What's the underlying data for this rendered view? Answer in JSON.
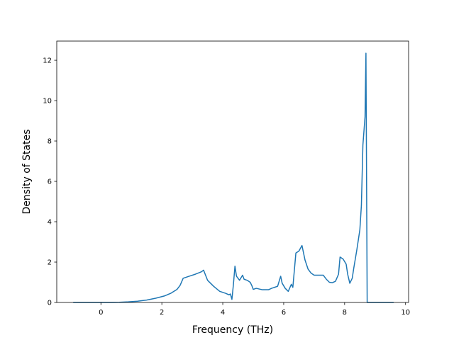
{
  "chart_data": {
    "type": "line",
    "title": "",
    "xlabel": "Frequency (THz)",
    "ylabel": "Density of States",
    "xlim": [
      -1.45,
      10.1
    ],
    "ylim": [
      0,
      12.95
    ],
    "xticks": [
      0,
      2,
      4,
      6,
      8,
      10
    ],
    "yticks": [
      0,
      2,
      4,
      6,
      8,
      10,
      12
    ],
    "grid": false,
    "legend": "none",
    "series": [
      {
        "color": "#1f77b4",
        "points": [
          [
            -0.9,
            0.0
          ],
          [
            0.0,
            0.0
          ],
          [
            0.3,
            0.0
          ],
          [
            0.6,
            0.01
          ],
          [
            0.9,
            0.03
          ],
          [
            1.2,
            0.06
          ],
          [
            1.5,
            0.12
          ],
          [
            1.8,
            0.21
          ],
          [
            2.1,
            0.33
          ],
          [
            2.3,
            0.46
          ],
          [
            2.5,
            0.65
          ],
          [
            2.6,
            0.85
          ],
          [
            2.7,
            1.2
          ],
          [
            2.9,
            1.3
          ],
          [
            3.1,
            1.4
          ],
          [
            3.3,
            1.52
          ],
          [
            3.37,
            1.6
          ],
          [
            3.5,
            1.1
          ],
          [
            3.7,
            0.8
          ],
          [
            3.9,
            0.55
          ],
          [
            4.1,
            0.45
          ],
          [
            4.2,
            0.38
          ],
          [
            4.25,
            0.42
          ],
          [
            4.3,
            0.15
          ],
          [
            4.35,
            0.9
          ],
          [
            4.4,
            1.8
          ],
          [
            4.45,
            1.3
          ],
          [
            4.55,
            1.1
          ],
          [
            4.65,
            1.35
          ],
          [
            4.7,
            1.15
          ],
          [
            4.8,
            1.1
          ],
          [
            4.9,
            1.0
          ],
          [
            4.95,
            0.85
          ],
          [
            5.0,
            0.65
          ],
          [
            5.1,
            0.7
          ],
          [
            5.3,
            0.63
          ],
          [
            5.5,
            0.63
          ],
          [
            5.6,
            0.7
          ],
          [
            5.7,
            0.75
          ],
          [
            5.8,
            0.8
          ],
          [
            5.9,
            1.3
          ],
          [
            5.95,
            0.95
          ],
          [
            6.05,
            0.7
          ],
          [
            6.15,
            0.55
          ],
          [
            6.25,
            0.9
          ],
          [
            6.3,
            0.75
          ],
          [
            6.4,
            2.45
          ],
          [
            6.5,
            2.55
          ],
          [
            6.6,
            2.82
          ],
          [
            6.7,
            2.1
          ],
          [
            6.8,
            1.65
          ],
          [
            6.9,
            1.45
          ],
          [
            7.0,
            1.35
          ],
          [
            7.1,
            1.35
          ],
          [
            7.3,
            1.35
          ],
          [
            7.4,
            1.15
          ],
          [
            7.5,
            1.0
          ],
          [
            7.6,
            0.98
          ],
          [
            7.7,
            1.05
          ],
          [
            7.8,
            1.4
          ],
          [
            7.85,
            2.25
          ],
          [
            7.95,
            2.15
          ],
          [
            8.05,
            1.9
          ],
          [
            8.1,
            1.4
          ],
          [
            8.17,
            0.95
          ],
          [
            8.25,
            1.2
          ],
          [
            8.3,
            1.7
          ],
          [
            8.4,
            2.6
          ],
          [
            8.5,
            3.6
          ],
          [
            8.55,
            4.8
          ],
          [
            8.6,
            7.8
          ],
          [
            8.67,
            9.2
          ],
          [
            8.7,
            12.35
          ],
          [
            8.74,
            0.0
          ],
          [
            9.6,
            0.0
          ]
        ]
      }
    ]
  }
}
